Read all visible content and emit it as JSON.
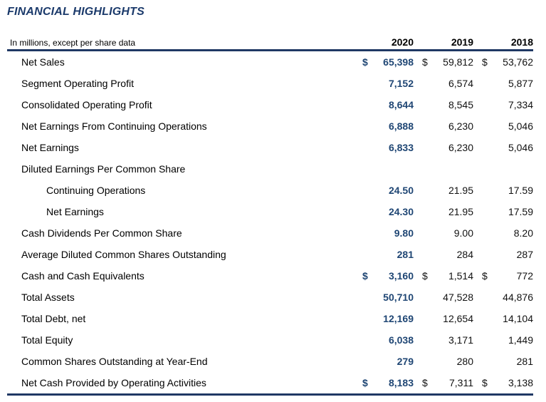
{
  "page": {
    "title": "FINANCIAL HIGHLIGHTS"
  },
  "colors": {
    "navy_title": "#1B3A6B",
    "navy_rule": "#1F3864",
    "value_2020": "#1F4674",
    "text": "#111111"
  },
  "table": {
    "units_note": "In millions, except per share data",
    "year_headers": [
      "2020",
      "2019",
      "2018"
    ],
    "dollar_sign": "$",
    "rows": [
      {
        "label": "Net Sales",
        "indent": 0,
        "dollar": true,
        "values": [
          "65,398",
          "59,812",
          "53,762"
        ]
      },
      {
        "label": "Segment Operating Profit",
        "indent": 0,
        "dollar": false,
        "values": [
          "7,152",
          "6,574",
          "5,877"
        ]
      },
      {
        "label": "Consolidated Operating Profit",
        "indent": 0,
        "dollar": false,
        "values": [
          "8,644",
          "8,545",
          "7,334"
        ]
      },
      {
        "label": "Net Earnings From Continuing Operations",
        "indent": 0,
        "dollar": false,
        "values": [
          "6,888",
          "6,230",
          "5,046"
        ]
      },
      {
        "label": "Net Earnings",
        "indent": 0,
        "dollar": false,
        "values": [
          "6,833",
          "6,230",
          "5,046"
        ]
      },
      {
        "label": "Diluted Earnings Per Common Share",
        "indent": 0,
        "dollar": false,
        "values": [
          "",
          "",
          ""
        ]
      },
      {
        "label": "Continuing Operations",
        "indent": 1,
        "dollar": false,
        "values": [
          "24.50",
          "21.95",
          "17.59"
        ]
      },
      {
        "label": "Net Earnings",
        "indent": 1,
        "dollar": false,
        "values": [
          "24.30",
          "21.95",
          "17.59"
        ]
      },
      {
        "label": "Cash Dividends Per Common Share",
        "indent": 0,
        "dollar": false,
        "values": [
          "9.80",
          "9.00",
          "8.20"
        ]
      },
      {
        "label": "Average Diluted Common Shares Outstanding",
        "indent": 0,
        "dollar": false,
        "values": [
          "281",
          "284",
          "287"
        ]
      },
      {
        "label": "Cash and Cash Equivalents",
        "indent": 0,
        "dollar": true,
        "values": [
          "3,160",
          "1,514",
          "772"
        ]
      },
      {
        "label": "Total Assets",
        "indent": 0,
        "dollar": false,
        "values": [
          "50,710",
          "47,528",
          "44,876"
        ]
      },
      {
        "label": "Total Debt, net",
        "indent": 0,
        "dollar": false,
        "values": [
          "12,169",
          "12,654",
          "14,104"
        ]
      },
      {
        "label": "Total Equity",
        "indent": 0,
        "dollar": false,
        "values": [
          "6,038",
          "3,171",
          "1,449"
        ]
      },
      {
        "label": "Common Shares Outstanding at Year-End",
        "indent": 0,
        "dollar": false,
        "values": [
          "279",
          "280",
          "281"
        ]
      },
      {
        "label": "Net Cash Provided by Operating Activities",
        "indent": 0,
        "dollar": true,
        "values": [
          "8,183",
          "7,311",
          "3,138"
        ]
      }
    ]
  }
}
